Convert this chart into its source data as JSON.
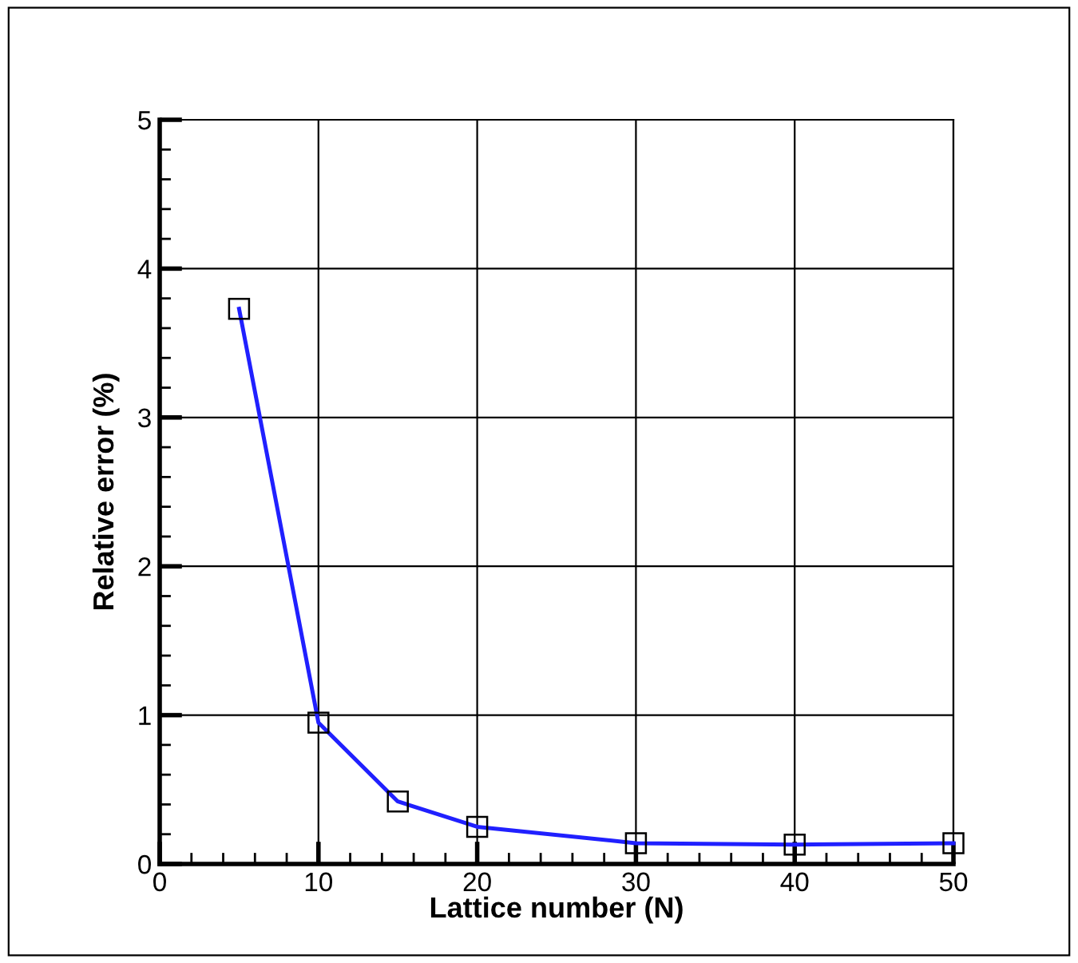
{
  "chart_data": {
    "type": "line",
    "xlabel": "Lattice number (N)",
    "ylabel": "Relative error (%)",
    "x": [
      5,
      10,
      15,
      20,
      30,
      40,
      50
    ],
    "series": [
      {
        "color": "#2020ff",
        "values": [
          3.73,
          0.95,
          0.42,
          0.25,
          0.14,
          0.13,
          0.14
        ]
      }
    ],
    "marker": "square",
    "line_style": "solid",
    "grid": true,
    "xlim": [
      0,
      50
    ],
    "xticks": [
      0,
      10,
      20,
      30,
      40,
      50
    ],
    "ylim": [
      0,
      5
    ],
    "yticks": [
      0,
      1,
      2,
      3,
      4,
      5
    ]
  }
}
